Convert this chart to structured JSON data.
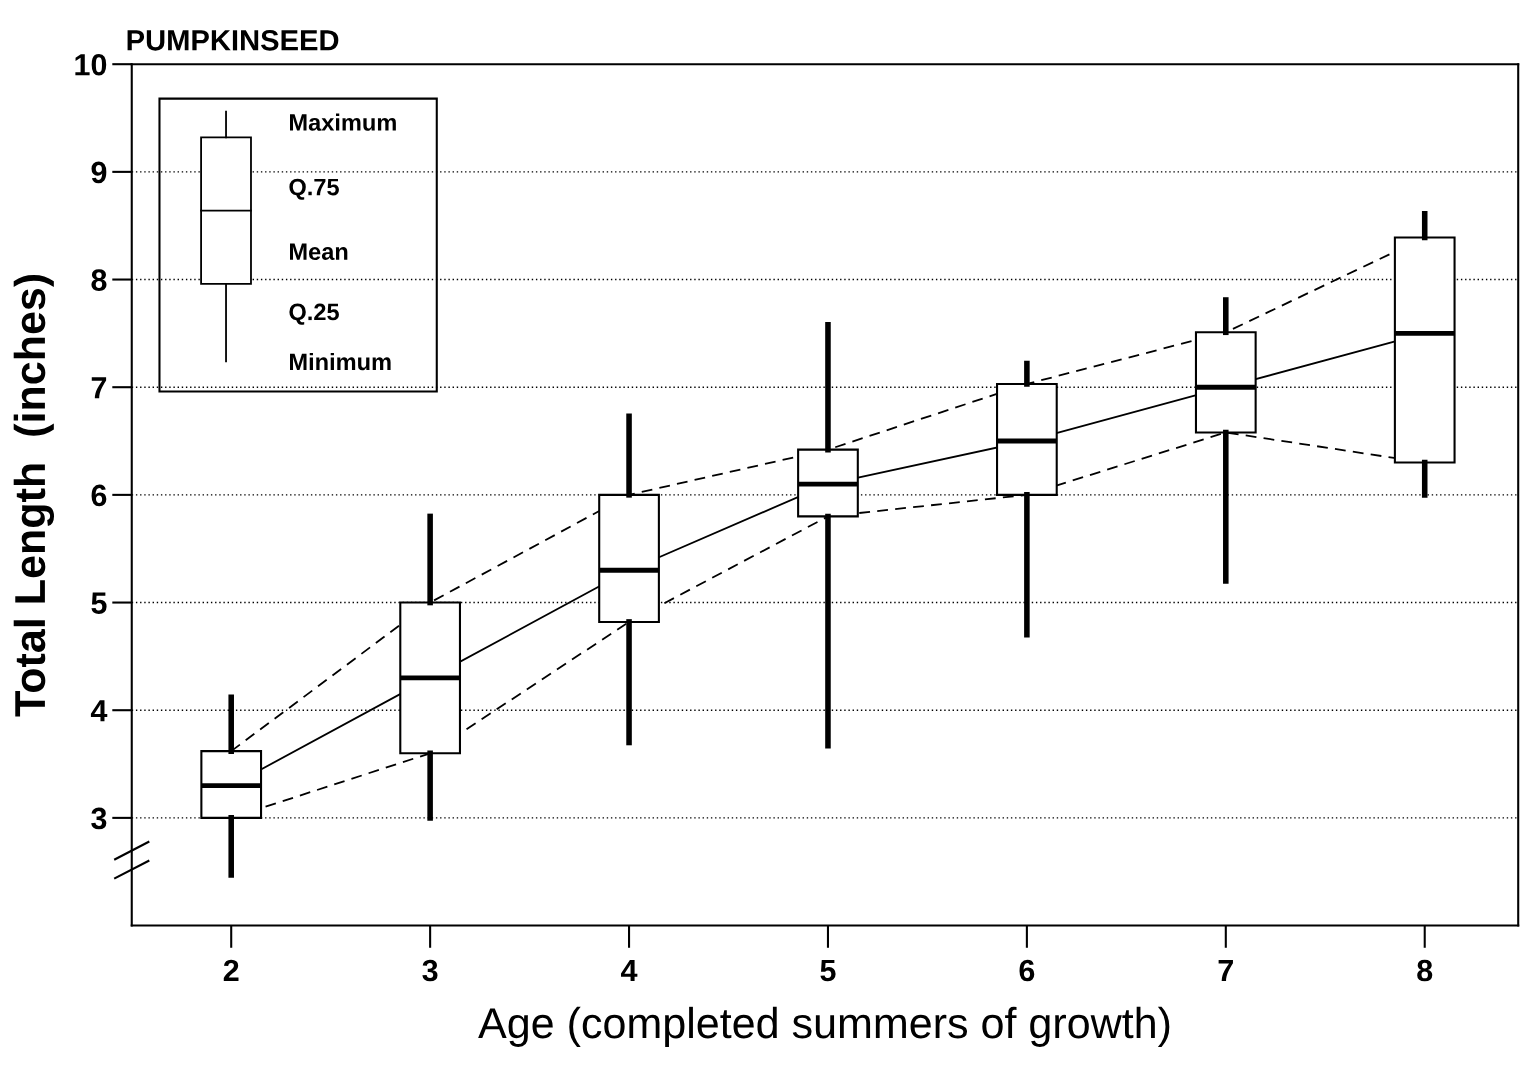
{
  "chart_data": {
    "type": "box",
    "title": "PUMPKINSEED",
    "xlabel": "Age (completed summers of growth)",
    "ylabel": "Total Length  (inches)",
    "categories": [
      "2",
      "3",
      "4",
      "5",
      "6",
      "7",
      "8"
    ],
    "boxes": [
      {
        "low": 2.47,
        "q1": 3.0,
        "median": 3.3,
        "q3": 3.62,
        "high": 4.12
      },
      {
        "low": 3.0,
        "q1": 3.6,
        "median": 4.3,
        "q3": 5.0,
        "high": 5.8
      },
      {
        "low": 3.7,
        "q1": 4.82,
        "median": 5.3,
        "q3": 6.0,
        "high": 6.73
      },
      {
        "low": 3.67,
        "q1": 5.8,
        "median": 6.1,
        "q3": 6.42,
        "high": 7.58
      },
      {
        "low": 4.7,
        "q1": 6.0,
        "median": 6.5,
        "q3": 7.03,
        "high": 7.22
      },
      {
        "low": 5.2,
        "q1": 6.58,
        "median": 7.0,
        "q3": 7.51,
        "high": 7.81
      },
      {
        "low": 6.0,
        "q1": 6.3,
        "median": 7.5,
        "q3": 8.39,
        "high": 8.61
      }
    ],
    "series": [
      {
        "type": "line",
        "color": "#000000",
        "line_style": "solid",
        "values": [
          3.3,
          4.3,
          5.3,
          6.1,
          6.5,
          7.0,
          7.5
        ]
      },
      {
        "type": "line",
        "color": "#000000",
        "line_style": "dashed",
        "values": [
          3.62,
          5.0,
          6.0,
          6.42,
          7.03,
          7.51,
          8.39
        ]
      },
      {
        "type": "line",
        "color": "#000000",
        "line_style": "dashed",
        "values": [
          3.0,
          3.6,
          4.82,
          5.8,
          6.0,
          6.58,
          6.3
        ]
      }
    ],
    "ylim": [
      2,
      10
    ],
    "yticks": [
      3,
      4,
      5,
      6,
      7,
      8,
      9,
      10
    ],
    "grid": "y",
    "annotations": [
      "Maximum",
      "Q.75",
      "Mean",
      "Q.25",
      "Minimum"
    ]
  }
}
